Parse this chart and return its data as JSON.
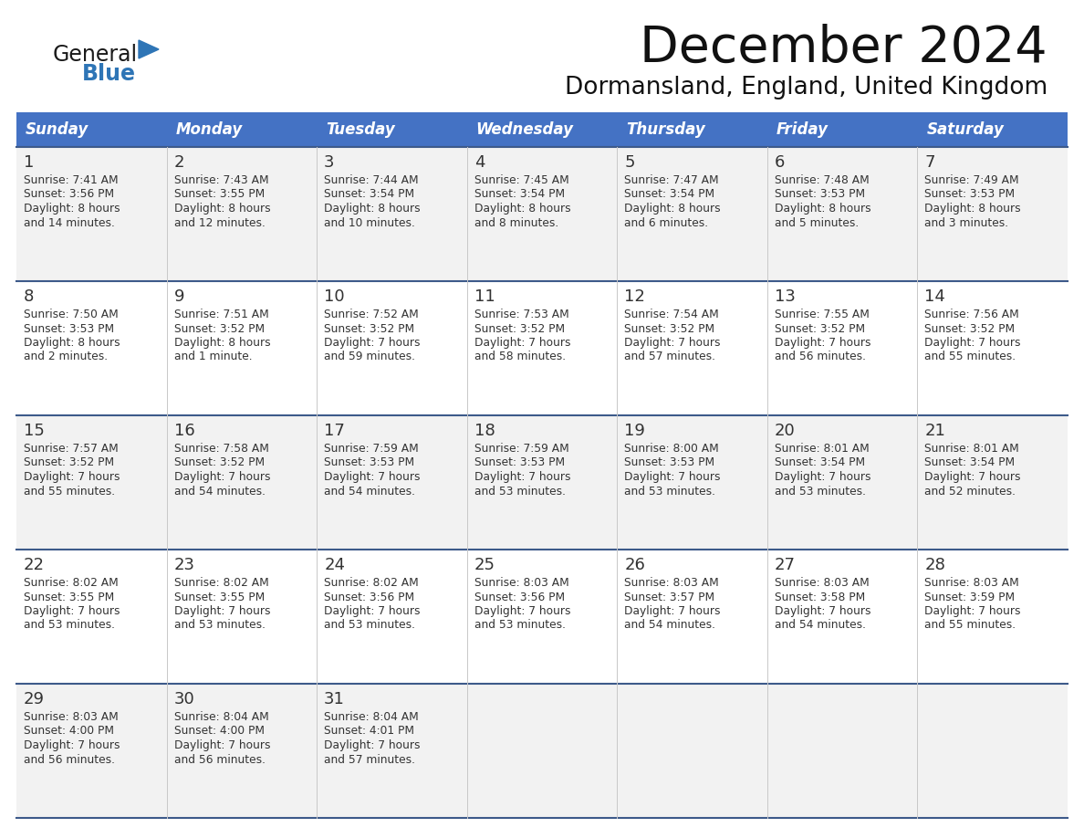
{
  "title": "December 2024",
  "subtitle": "Dormansland, England, United Kingdom",
  "header_bg": "#4472C4",
  "header_text_color": "#FFFFFF",
  "day_headers": [
    "Sunday",
    "Monday",
    "Tuesday",
    "Wednesday",
    "Thursday",
    "Friday",
    "Saturday"
  ],
  "cell_bg_odd": "#F2F2F2",
  "cell_bg_even": "#FFFFFF",
  "divider_color": "#3D5A8A",
  "text_color": "#333333",
  "title_color": "#111111",
  "subtitle_color": "#111111",
  "logo_color": "#2E75B6",
  "logo_dark": "#1a1a1a",
  "weeks": [
    [
      {
        "day": 1,
        "sunrise": "7:41 AM",
        "sunset": "3:56 PM",
        "daylight": "8 hours",
        "daylight2": "and 14 minutes."
      },
      {
        "day": 2,
        "sunrise": "7:43 AM",
        "sunset": "3:55 PM",
        "daylight": "8 hours",
        "daylight2": "and 12 minutes."
      },
      {
        "day": 3,
        "sunrise": "7:44 AM",
        "sunset": "3:54 PM",
        "daylight": "8 hours",
        "daylight2": "and 10 minutes."
      },
      {
        "day": 4,
        "sunrise": "7:45 AM",
        "sunset": "3:54 PM",
        "daylight": "8 hours",
        "daylight2": "and 8 minutes."
      },
      {
        "day": 5,
        "sunrise": "7:47 AM",
        "sunset": "3:54 PM",
        "daylight": "8 hours",
        "daylight2": "and 6 minutes."
      },
      {
        "day": 6,
        "sunrise": "7:48 AM",
        "sunset": "3:53 PM",
        "daylight": "8 hours",
        "daylight2": "and 5 minutes."
      },
      {
        "day": 7,
        "sunrise": "7:49 AM",
        "sunset": "3:53 PM",
        "daylight": "8 hours",
        "daylight2": "and 3 minutes."
      }
    ],
    [
      {
        "day": 8,
        "sunrise": "7:50 AM",
        "sunset": "3:53 PM",
        "daylight": "8 hours",
        "daylight2": "and 2 minutes."
      },
      {
        "day": 9,
        "sunrise": "7:51 AM",
        "sunset": "3:52 PM",
        "daylight": "8 hours",
        "daylight2": "and 1 minute."
      },
      {
        "day": 10,
        "sunrise": "7:52 AM",
        "sunset": "3:52 PM",
        "daylight": "7 hours",
        "daylight2": "and 59 minutes."
      },
      {
        "day": 11,
        "sunrise": "7:53 AM",
        "sunset": "3:52 PM",
        "daylight": "7 hours",
        "daylight2": "and 58 minutes."
      },
      {
        "day": 12,
        "sunrise": "7:54 AM",
        "sunset": "3:52 PM",
        "daylight": "7 hours",
        "daylight2": "and 57 minutes."
      },
      {
        "day": 13,
        "sunrise": "7:55 AM",
        "sunset": "3:52 PM",
        "daylight": "7 hours",
        "daylight2": "and 56 minutes."
      },
      {
        "day": 14,
        "sunrise": "7:56 AM",
        "sunset": "3:52 PM",
        "daylight": "7 hours",
        "daylight2": "and 55 minutes."
      }
    ],
    [
      {
        "day": 15,
        "sunrise": "7:57 AM",
        "sunset": "3:52 PM",
        "daylight": "7 hours",
        "daylight2": "and 55 minutes."
      },
      {
        "day": 16,
        "sunrise": "7:58 AM",
        "sunset": "3:52 PM",
        "daylight": "7 hours",
        "daylight2": "and 54 minutes."
      },
      {
        "day": 17,
        "sunrise": "7:59 AM",
        "sunset": "3:53 PM",
        "daylight": "7 hours",
        "daylight2": "and 54 minutes."
      },
      {
        "day": 18,
        "sunrise": "7:59 AM",
        "sunset": "3:53 PM",
        "daylight": "7 hours",
        "daylight2": "and 53 minutes."
      },
      {
        "day": 19,
        "sunrise": "8:00 AM",
        "sunset": "3:53 PM",
        "daylight": "7 hours",
        "daylight2": "and 53 minutes."
      },
      {
        "day": 20,
        "sunrise": "8:01 AM",
        "sunset": "3:54 PM",
        "daylight": "7 hours",
        "daylight2": "and 53 minutes."
      },
      {
        "day": 21,
        "sunrise": "8:01 AM",
        "sunset": "3:54 PM",
        "daylight": "7 hours",
        "daylight2": "and 52 minutes."
      }
    ],
    [
      {
        "day": 22,
        "sunrise": "8:02 AM",
        "sunset": "3:55 PM",
        "daylight": "7 hours",
        "daylight2": "and 53 minutes."
      },
      {
        "day": 23,
        "sunrise": "8:02 AM",
        "sunset": "3:55 PM",
        "daylight": "7 hours",
        "daylight2": "and 53 minutes."
      },
      {
        "day": 24,
        "sunrise": "8:02 AM",
        "sunset": "3:56 PM",
        "daylight": "7 hours",
        "daylight2": "and 53 minutes."
      },
      {
        "day": 25,
        "sunrise": "8:03 AM",
        "sunset": "3:56 PM",
        "daylight": "7 hours",
        "daylight2": "and 53 minutes."
      },
      {
        "day": 26,
        "sunrise": "8:03 AM",
        "sunset": "3:57 PM",
        "daylight": "7 hours",
        "daylight2": "and 54 minutes."
      },
      {
        "day": 27,
        "sunrise": "8:03 AM",
        "sunset": "3:58 PM",
        "daylight": "7 hours",
        "daylight2": "and 54 minutes."
      },
      {
        "day": 28,
        "sunrise": "8:03 AM",
        "sunset": "3:59 PM",
        "daylight": "7 hours",
        "daylight2": "and 55 minutes."
      }
    ],
    [
      {
        "day": 29,
        "sunrise": "8:03 AM",
        "sunset": "4:00 PM",
        "daylight": "7 hours",
        "daylight2": "and 56 minutes."
      },
      {
        "day": 30,
        "sunrise": "8:04 AM",
        "sunset": "4:00 PM",
        "daylight": "7 hours",
        "daylight2": "and 56 minutes."
      },
      {
        "day": 31,
        "sunrise": "8:04 AM",
        "sunset": "4:01 PM",
        "daylight": "7 hours",
        "daylight2": "and 57 minutes."
      },
      null,
      null,
      null,
      null
    ]
  ],
  "figsize": [
    11.88,
    9.18
  ],
  "dpi": 100
}
